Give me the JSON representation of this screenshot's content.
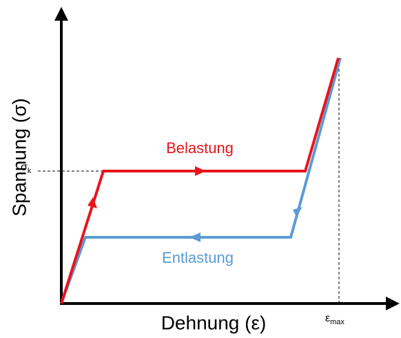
{
  "axes": {
    "y_label": "Spannung (σ)",
    "x_label": "Dehnung (ε)"
  },
  "curves": {
    "loading": "Belastung",
    "unloading": "Entlastung"
  },
  "markers": {
    "sigma_k": {
      "base": "σ",
      "sub": "k"
    },
    "epsilon_max": {
      "base": "ε",
      "sub": "max"
    }
  }
}
